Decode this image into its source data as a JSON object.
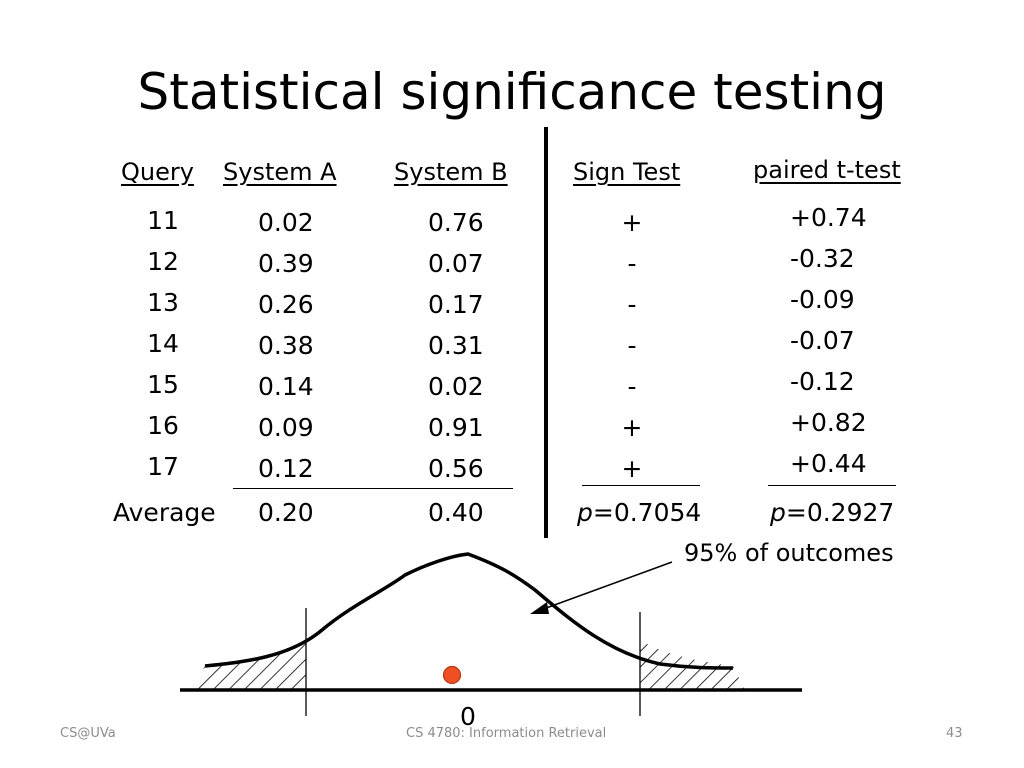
{
  "slide": {
    "title": "Statistical significance testing",
    "footer_left": "CS@UVa",
    "footer_center": "CS 4780: Information Retrieval",
    "footer_right": "43"
  },
  "table": {
    "headers": {
      "query": "Query",
      "system_a": "System A",
      "system_b": "System B",
      "sign_test": "Sign Test",
      "paired_t": "paired t-test"
    },
    "queries": [
      "11",
      "12",
      "13",
      "14",
      "15",
      "16",
      "17"
    ],
    "system_a": [
      "0.02",
      "0.39",
      "0.26",
      "0.38",
      "0.14",
      "0.09",
      "0.12"
    ],
    "system_b": [
      "0.76",
      "0.07",
      "0.17",
      "0.31",
      "0.02",
      "0.91",
      "0.56"
    ],
    "sign": [
      "+",
      "-",
      "-",
      "-",
      "-",
      "+",
      "+"
    ],
    "diff": [
      "+0.74",
      "-0.32",
      "-0.09",
      "-0.07",
      "-0.12",
      "+0.82",
      "+0.44"
    ],
    "average_label": "Average",
    "average_a": "0.20",
    "average_b": "0.40",
    "p_label": "p",
    "sign_p": "=0.7054",
    "t_p": "=0.2927"
  },
  "diagram": {
    "caption": "95% of outcomes",
    "axis_label": "0",
    "marker_color": "#f04e23"
  }
}
